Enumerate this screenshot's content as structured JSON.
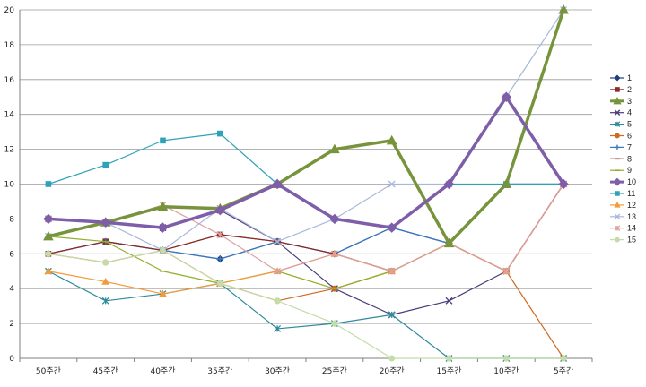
{
  "chart_data": {
    "type": "line",
    "title": "",
    "xlabel": "",
    "ylabel": "",
    "categories": [
      "50주간",
      "45주간",
      "40주간",
      "35주간",
      "30주간",
      "25주간",
      "20주간",
      "15주간",
      "10주간",
      "5주간"
    ],
    "ylim": [
      0,
      20
    ],
    "yticks": [
      0,
      2,
      4,
      6,
      8,
      10,
      12,
      14,
      16,
      18,
      20
    ],
    "grid": "horizontal",
    "legend_position": "right",
    "series": [
      {
        "name": "1",
        "color": "#1f3f77",
        "marker": "diamond",
        "width": 1.2,
        "values": [
          6,
          6.7,
          6.2,
          5.7,
          6.7,
          6,
          7.5,
          6.6,
          10,
          10
        ]
      },
      {
        "name": "2",
        "color": "#8b2a2a",
        "marker": "square",
        "width": 1.2,
        "values": [
          6,
          6.7,
          6.2,
          7.1,
          6.7,
          6,
          5,
          6.6,
          5,
          10
        ]
      },
      {
        "name": "3",
        "color": "#77933c",
        "marker": "triangle",
        "width": 3.5,
        "values": [
          7,
          7.8,
          8.7,
          8.6,
          10,
          12,
          12.5,
          6.6,
          10,
          20
        ]
      },
      {
        "name": "4",
        "color": "#4b3a7a",
        "marker": "x",
        "width": 1.2,
        "values": [
          8,
          7.8,
          7.5,
          8.5,
          6.7,
          4,
          2.5,
          3.3,
          5,
          10
        ]
      },
      {
        "name": "5",
        "color": "#2e8a9a",
        "marker": "star",
        "width": 1.2,
        "values": [
          5,
          3.3,
          3.7,
          4.3,
          1.7,
          2,
          2.5,
          0,
          0,
          0
        ]
      },
      {
        "name": "6",
        "color": "#d06a20",
        "marker": "circle",
        "width": 1.2,
        "values": [
          6,
          5.5,
          6.2,
          4.3,
          3.3,
          4,
          5,
          6.6,
          5,
          0
        ]
      },
      {
        "name": "7",
        "color": "#3a78c0",
        "marker": "plus",
        "width": 1.2,
        "values": [
          6,
          6.7,
          6.2,
          5.7,
          6.7,
          6,
          7.5,
          6.6,
          10,
          10
        ]
      },
      {
        "name": "8",
        "color": "#8b2a2a",
        "marker": "dash",
        "width": 1.2,
        "values": [
          6,
          6.7,
          6.2,
          7.1,
          6.7,
          6,
          5,
          6.6,
          5,
          10
        ]
      },
      {
        "name": "9",
        "color": "#8fae2a",
        "marker": "dash",
        "width": 1.2,
        "values": [
          7,
          6.7,
          5,
          4.3,
          5,
          4,
          5,
          6.6,
          10,
          20
        ]
      },
      {
        "name": "10",
        "color": "#7e5ea8",
        "marker": "diamond",
        "width": 3.5,
        "values": [
          8,
          7.8,
          7.5,
          8.5,
          10,
          8,
          7.5,
          10,
          15,
          10
        ]
      },
      {
        "name": "11",
        "color": "#2ea3b8",
        "marker": "square",
        "width": 1.2,
        "values": [
          10,
          11.1,
          12.5,
          12.9,
          10,
          8,
          7.5,
          10,
          10,
          10
        ]
      },
      {
        "name": "12",
        "color": "#f39a3a",
        "marker": "triangle",
        "width": 1.2,
        "values": [
          5,
          4.4,
          3.7,
          4.3,
          5,
          6,
          5,
          6.6,
          5,
          10
        ]
      },
      {
        "name": "13",
        "color": "#a8b8dc",
        "marker": "x",
        "width": 1.2,
        "values": [
          7,
          7.8,
          6.2,
          8.6,
          6.7,
          8,
          10,
          10,
          15,
          20
        ]
      },
      {
        "name": "14",
        "color": "#dca0a0",
        "marker": "star",
        "width": 1.2,
        "values": [
          8,
          7.8,
          8.8,
          7.1,
          5,
          6,
          5,
          6.6,
          5,
          10
        ]
      },
      {
        "name": "15",
        "color": "#c4dca8",
        "marker": "circle",
        "width": 1.2,
        "values": [
          6,
          5.5,
          6.2,
          4.3,
          3.3,
          2,
          0,
          0,
          0,
          0
        ]
      }
    ]
  }
}
